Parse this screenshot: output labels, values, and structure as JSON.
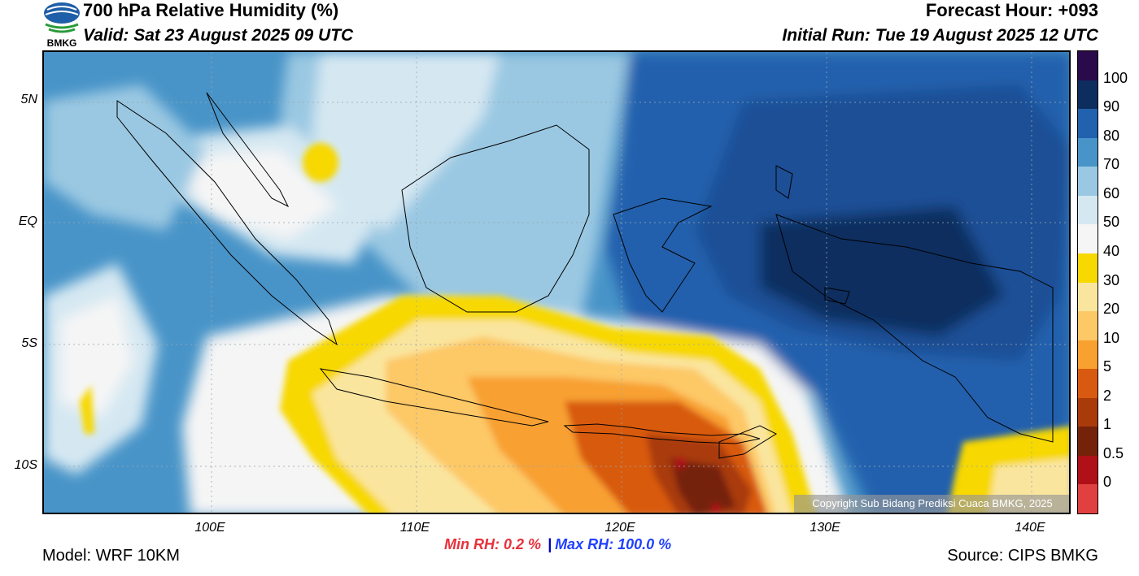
{
  "header": {
    "title": "700 hPa Relative Humidity (%)",
    "valid": "Valid: Sat 23 August 2025 09 UTC",
    "forecast_hour": "Forecast Hour: +093",
    "initial_run": "Initial Run: Tue 19 August 2025 12 UTC",
    "logo_text": "BMKG"
  },
  "axes": {
    "lat_labels": [
      "5N",
      "EQ",
      "5S",
      "10S"
    ],
    "lon_labels": [
      "100E",
      "110E",
      "120E",
      "130E",
      "140E"
    ]
  },
  "colorbar": {
    "labels": [
      "100",
      "90",
      "80",
      "70",
      "60",
      "50",
      "40",
      "30",
      "20",
      "10",
      "5",
      "2",
      "1",
      "0.5",
      "0"
    ],
    "colors": [
      "#2a0a4a",
      "#0d2d5e",
      "#2161ad",
      "#4894c8",
      "#9ac8e2",
      "#d5e8f2",
      "#f5f5f5",
      "#f7d800",
      "#fae59e",
      "#fdc866",
      "#f8a030",
      "#d85a10",
      "#a93a0a",
      "#74220a",
      "#b01018",
      "#e04040"
    ]
  },
  "stats": {
    "min_rh": "Min RH:   0.2 %",
    "separator": "|",
    "max_rh": "Max RH: 100.0 %"
  },
  "footer": {
    "model": "Model: WRF 10KM",
    "source": "Source: CIPS BMKG",
    "copyright": "Copyright Sub Bidang Prediksi Cuaca BMKG, 2025"
  }
}
